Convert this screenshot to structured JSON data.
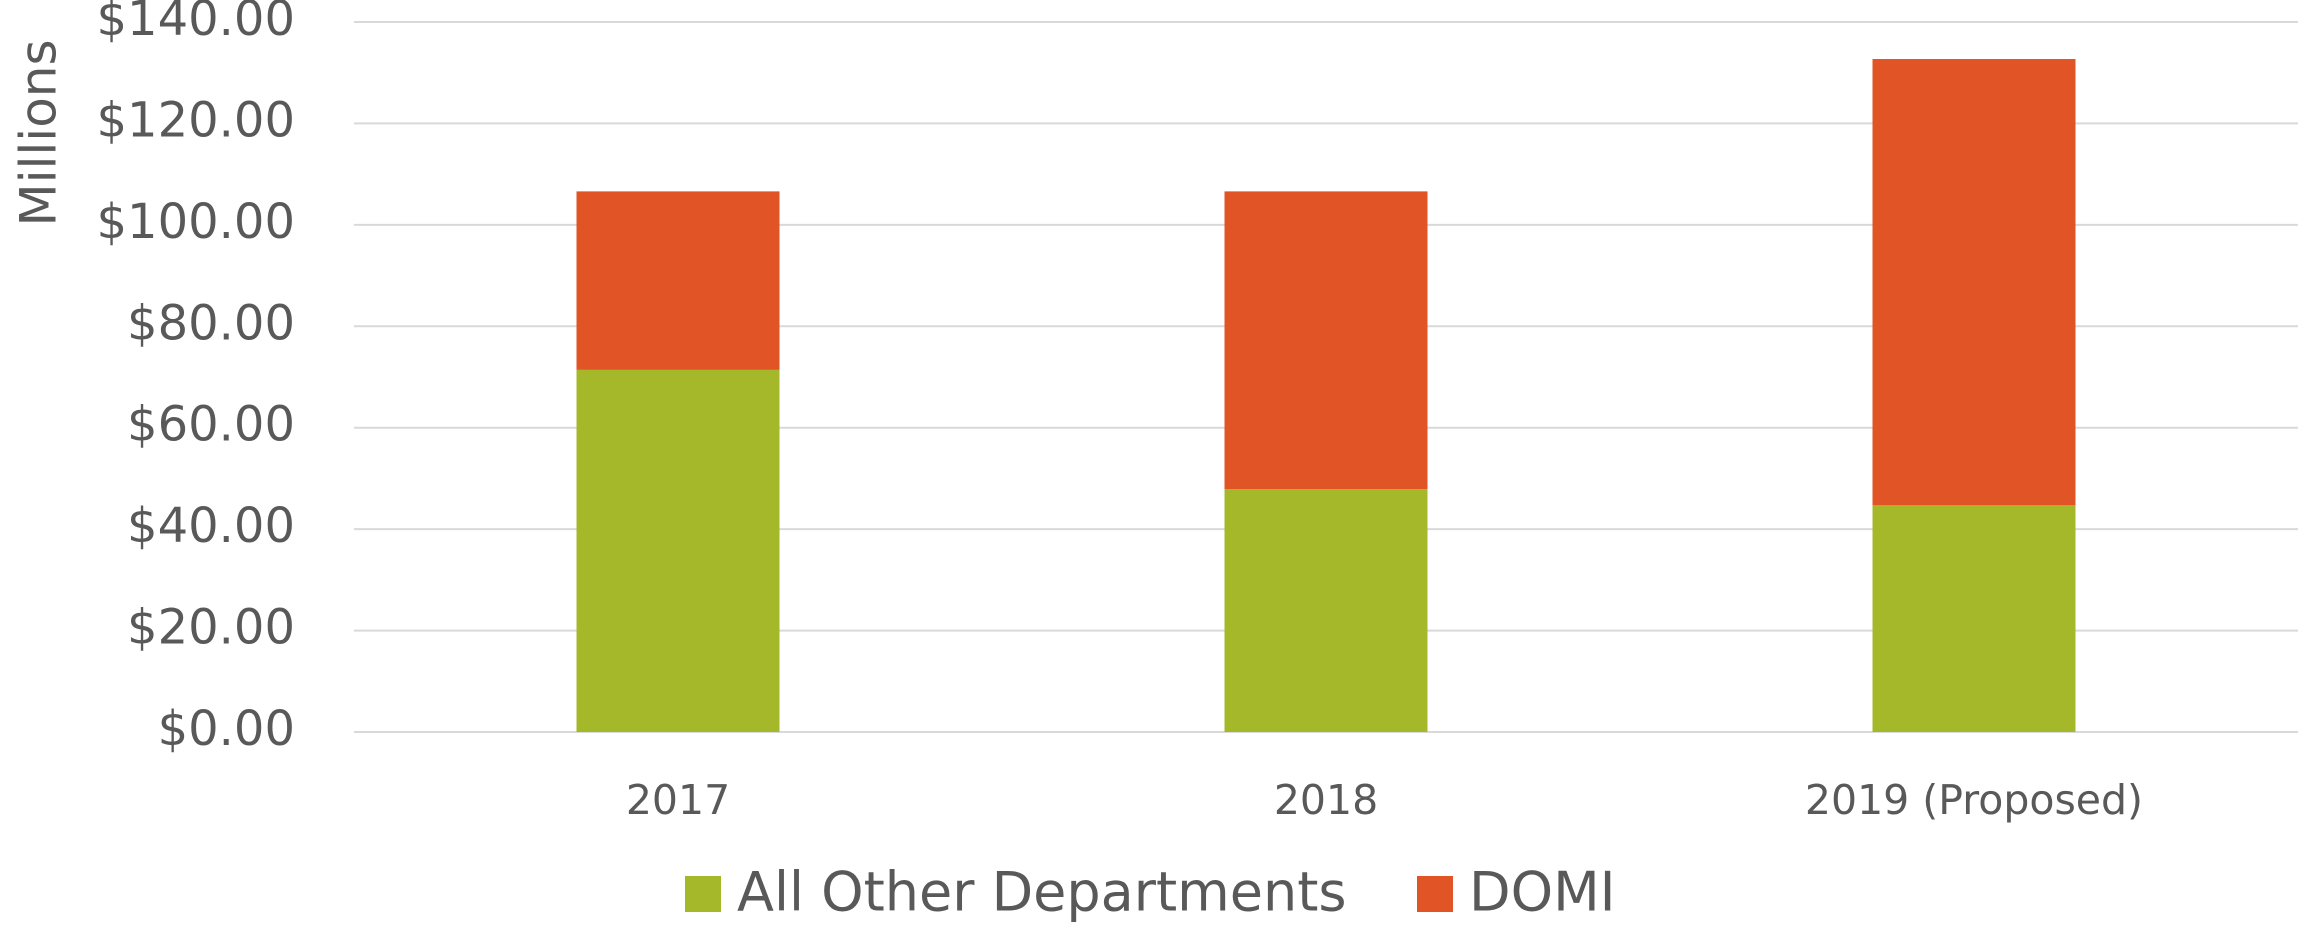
{
  "chart_data": {
    "type": "stacked_bar",
    "y_axis_label": "Millions",
    "categories": [
      "2017",
      "2018",
      "2019 (Proposed)"
    ],
    "series": [
      {
        "name": "All Other Departments",
        "color": "#a5b82a",
        "values": [
          71.4,
          47.9,
          44.7
        ]
      },
      {
        "name": "DOMI",
        "color": "#e05426",
        "values": [
          35.2,
          58.7,
          88.0
        ]
      }
    ],
    "ylim": [
      0,
      140
    ],
    "yticks": [
      {
        "value": 0,
        "label": "$0.00"
      },
      {
        "value": 20,
        "label": "$20.00"
      },
      {
        "value": 40,
        "label": "$40.00"
      },
      {
        "value": 60,
        "label": "$60.00"
      },
      {
        "value": 80,
        "label": "$80.00"
      },
      {
        "value": 100,
        "label": "$100.00"
      },
      {
        "value": 120,
        "label": "$120.00"
      },
      {
        "value": 140,
        "label": "$140.00"
      }
    ],
    "grid": true,
    "legend": "bottom"
  }
}
